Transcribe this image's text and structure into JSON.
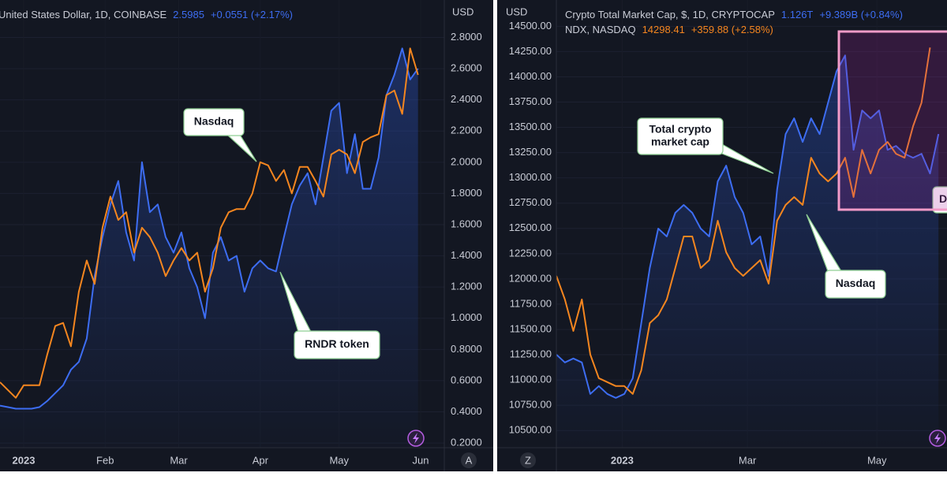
{
  "chart_data": [
    {
      "type": "line",
      "x": [
        -9,
        -6,
        -3,
        0,
        3,
        6,
        9,
        12,
        15,
        18,
        21,
        24,
        27,
        30,
        33,
        36,
        39,
        42,
        45,
        48,
        51,
        54,
        57,
        60,
        63,
        66,
        69,
        72,
        75,
        78,
        81,
        84,
        87,
        90,
        93,
        96,
        99,
        102,
        105,
        108,
        111,
        114,
        117,
        120,
        123,
        126,
        129,
        132,
        135,
        138,
        141,
        144,
        147,
        150
      ],
      "xlim": [
        -9,
        160
      ],
      "xticks": [
        {
          "value": 0,
          "label": "2023"
        },
        {
          "value": 31,
          "label": "Feb"
        },
        {
          "value": 59,
          "label": "Mar"
        },
        {
          "value": 90,
          "label": "Apr"
        },
        {
          "value": 120,
          "label": "May"
        },
        {
          "value": 151,
          "label": "Jun"
        }
      ],
      "ylim": [
        0.17,
        3.04
      ],
      "yticks": [
        {
          "value": 0.2,
          "label": "0.2000"
        },
        {
          "value": 0.4,
          "label": "0.4000"
        },
        {
          "value": 0.6,
          "label": "0.6000"
        },
        {
          "value": 0.8,
          "label": "0.8000"
        },
        {
          "value": 1.0,
          "label": "1.0000"
        },
        {
          "value": 1.2,
          "label": "1.2000"
        },
        {
          "value": 1.4,
          "label": "1.4000"
        },
        {
          "value": 1.6,
          "label": "1.6000"
        },
        {
          "value": 1.8,
          "label": "1.8000"
        },
        {
          "value": 2.0,
          "label": "2.0000"
        },
        {
          "value": 2.2,
          "label": "2.2000"
        },
        {
          "value": 2.4,
          "label": "2.4000"
        },
        {
          "value": 2.6,
          "label": "2.6000"
        },
        {
          "value": 2.8,
          "label": "2.8000"
        }
      ],
      "y_axis_label": "USD",
      "grid": true,
      "scale_button": "A",
      "series": [
        {
          "name": "United States Dollar, 1D, COINBASE",
          "last_value_label": "2.5985",
          "change_label": "+0.0551 (+2.17%)",
          "color": "#3d6df2",
          "area": true,
          "values": [
            0.44,
            0.43,
            0.42,
            0.42,
            0.42,
            0.43,
            0.47,
            0.52,
            0.57,
            0.67,
            0.72,
            0.87,
            1.27,
            1.52,
            1.73,
            1.88,
            1.55,
            1.37,
            2.0,
            1.68,
            1.73,
            1.52,
            1.42,
            1.55,
            1.32,
            1.2,
            1.0,
            1.42,
            1.52,
            1.37,
            1.4,
            1.17,
            1.32,
            1.37,
            1.32,
            1.3,
            1.52,
            1.73,
            1.85,
            1.93,
            1.73,
            2.03,
            2.33,
            2.38,
            1.93,
            2.18,
            1.83,
            1.83,
            2.03,
            2.43,
            2.56,
            2.73,
            2.53,
            2.6
          ]
        },
        {
          "color": "#f5861f",
          "area": false,
          "values": [
            0.59,
            0.54,
            0.49,
            0.57,
            0.57,
            0.57,
            0.77,
            0.95,
            0.97,
            0.82,
            1.17,
            1.37,
            1.22,
            1.58,
            1.78,
            1.63,
            1.68,
            1.42,
            1.58,
            1.52,
            1.42,
            1.27,
            1.37,
            1.45,
            1.37,
            1.42,
            1.17,
            1.32,
            1.58,
            1.68,
            1.7,
            1.7,
            1.8,
            2.0,
            1.98,
            1.88,
            1.95,
            1.8,
            1.97,
            1.97,
            1.88,
            1.78,
            2.05,
            2.08,
            2.05,
            1.93,
            2.13,
            2.16,
            2.18,
            2.43,
            2.46,
            2.31,
            2.73,
            2.56
          ]
        }
      ],
      "annotations": [
        {
          "lines": [
            "Nasdaq"
          ]
        },
        {
          "lines": [
            "RNDR token"
          ]
        }
      ]
    },
    {
      "type": "line",
      "x": [
        -31,
        -27,
        -23,
        -19,
        -15,
        -11,
        -7,
        -3,
        1,
        5,
        9,
        13,
        17,
        21,
        25,
        29,
        33,
        37,
        41,
        45,
        49,
        53,
        57,
        61,
        65,
        69,
        73,
        77,
        81,
        85,
        89,
        93,
        97,
        101,
        105,
        109,
        113,
        117,
        121,
        125,
        129,
        133,
        137,
        141,
        145,
        149
      ],
      "xlim": [
        -31,
        153
      ],
      "xticks": [
        {
          "value": 0,
          "label": "2023"
        },
        {
          "value": 59,
          "label": "Mar"
        },
        {
          "value": 120,
          "label": "May"
        }
      ],
      "ylim": [
        10330,
        14760
      ],
      "yticks": [
        {
          "value": 10500,
          "label": "10500.00"
        },
        {
          "value": 10750,
          "label": "10750.00"
        },
        {
          "value": 11000,
          "label": "11000.00"
        },
        {
          "value": 11250,
          "label": "11250.00"
        },
        {
          "value": 11500,
          "label": "11500.00"
        },
        {
          "value": 11750,
          "label": "11750.00"
        },
        {
          "value": 12000,
          "label": "12000.00"
        },
        {
          "value": 12250,
          "label": "12250.00"
        },
        {
          "value": 12500,
          "label": "12500.00"
        },
        {
          "value": 12750,
          "label": "12750.00"
        },
        {
          "value": 13000,
          "label": "13000.00"
        },
        {
          "value": 13250,
          "label": "13250.00"
        },
        {
          "value": 13500,
          "label": "13500.00"
        },
        {
          "value": 13750,
          "label": "13750.00"
        },
        {
          "value": 14000,
          "label": "14000.00"
        },
        {
          "value": 14250,
          "label": "14250.00"
        },
        {
          "value": 14500,
          "label": "14500.00"
        }
      ],
      "y_axis_label": "USD",
      "grid": true,
      "scale_button": "Z",
      "series": [
        {
          "name": "Crypto Total Market Cap, $, 1D, CRYPTOCAP",
          "last_value_label": "1.126T",
          "change_label": "+9.389B (+0.84%)",
          "color": "#3d6df2",
          "area": true,
          "values": [
            11252,
            11174,
            11213,
            11174,
            10862,
            10940,
            10862,
            10823,
            10862,
            11018,
            11563,
            12108,
            12498,
            12420,
            12654,
            12732,
            12654,
            12498,
            12420,
            12965,
            13121,
            12810,
            12654,
            12342,
            12420,
            12030,
            12888,
            13433,
            13589,
            13355,
            13589,
            13433,
            13744,
            14056,
            14212,
            13277,
            13667,
            13589,
            13667,
            13277,
            13316,
            13238,
            13199,
            13238,
            13043,
            13433
          ]
        },
        {
          "name": "NDX, NASDAQ",
          "last_value_label": "14298.41",
          "change_label": "+359.88 (+2.58%)",
          "color": "#f5861f",
          "area": false,
          "values": [
            12030,
            11797,
            11485,
            11797,
            11252,
            11018,
            10979,
            10940,
            10940,
            10862,
            11096,
            11563,
            11641,
            11797,
            12108,
            12420,
            12420,
            12108,
            12186,
            12576,
            12264,
            12108,
            12030,
            12108,
            12186,
            11953,
            12576,
            12732,
            12810,
            12732,
            13199,
            13043,
            12965,
            13043,
            13199,
            12810,
            13277,
            13043,
            13277,
            13355,
            13238,
            13199,
            13511,
            13744,
            14290,
            null
          ]
        }
      ],
      "annotations": [
        {
          "lines": [
            "Total crypto",
            "market cap"
          ]
        },
        {
          "lines": [
            "Nasdaq"
          ]
        },
        {
          "lines": [
            "D"
          ]
        }
      ]
    }
  ]
}
